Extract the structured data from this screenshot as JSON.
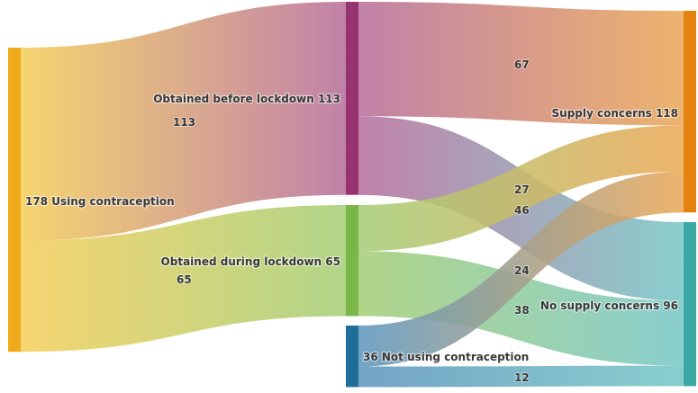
{
  "chart_data": {
    "type": "sankey",
    "nodes": [
      {
        "id": "using",
        "label": "178 Using contraception",
        "value": 178,
        "color": "#eeaa1a"
      },
      {
        "id": "before",
        "label": "Obtained before lockdown 113",
        "value": 113,
        "color": "#97336f"
      },
      {
        "id": "during",
        "label": "Obtained during lockdown 65",
        "value": 65,
        "color": "#7ab648"
      },
      {
        "id": "notusing",
        "label": "36 Not using contraception",
        "value": 36,
        "color": "#1f6e9a"
      },
      {
        "id": "supply",
        "label": "Supply concerns 118",
        "value": 118,
        "color": "#e5820f"
      },
      {
        "id": "nosupply",
        "label": "No supply concerns 96",
        "value": 96,
        "color": "#3aa9a6"
      }
    ],
    "links": [
      {
        "source": "using",
        "target": "before",
        "value": 113,
        "label": "113"
      },
      {
        "source": "using",
        "target": "during",
        "value": 65,
        "label": "65"
      },
      {
        "source": "before",
        "target": "supply",
        "value": 67,
        "label": "67"
      },
      {
        "source": "before",
        "target": "nosupply",
        "value": 46,
        "label": "46"
      },
      {
        "source": "during",
        "target": "supply",
        "value": 27,
        "label": "27"
      },
      {
        "source": "during",
        "target": "nosupply",
        "value": 38,
        "label": "38"
      },
      {
        "source": "notusing",
        "target": "supply",
        "value": 24,
        "label": "24"
      },
      {
        "source": "notusing",
        "target": "nosupply",
        "value": 12,
        "label": "12"
      }
    ],
    "link_colors": {
      "using": "#f4cf5c",
      "before": "#b8709c",
      "during": "#a6cf78",
      "notusing": "#5f97be",
      "supply": "#eba959",
      "nosupply": "#79c8c8"
    }
  }
}
